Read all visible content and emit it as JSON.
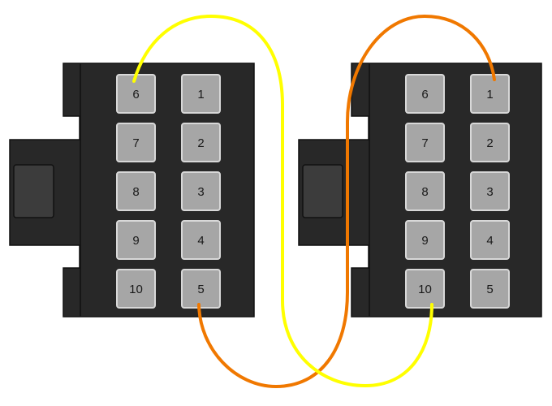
{
  "connectors": [
    {
      "id": "left",
      "pins": [
        {
          "label": "6"
        },
        {
          "label": "1"
        },
        {
          "label": "7"
        },
        {
          "label": "2"
        },
        {
          "label": "8"
        },
        {
          "label": "3"
        },
        {
          "label": "9"
        },
        {
          "label": "4"
        },
        {
          "label": "10"
        },
        {
          "label": "5"
        }
      ]
    },
    {
      "id": "right",
      "pins": [
        {
          "label": "6"
        },
        {
          "label": "1"
        },
        {
          "label": "7"
        },
        {
          "label": "2"
        },
        {
          "label": "8"
        },
        {
          "label": "3"
        },
        {
          "label": "9"
        },
        {
          "label": "4"
        },
        {
          "label": "10"
        },
        {
          "label": "5"
        }
      ]
    }
  ],
  "wires": [
    {
      "name": "yellow",
      "color": "#ffff00",
      "from": "left pin 6",
      "to": "right pin 10"
    },
    {
      "name": "orange",
      "color": "#f07800",
      "from": "left pin 5",
      "to": "right pin 1"
    }
  ],
  "colors": {
    "housing": "#282828",
    "latch": "#3c3c3c",
    "pin_fill": "#a6a6a6",
    "pin_border": "#d8d8d8"
  }
}
